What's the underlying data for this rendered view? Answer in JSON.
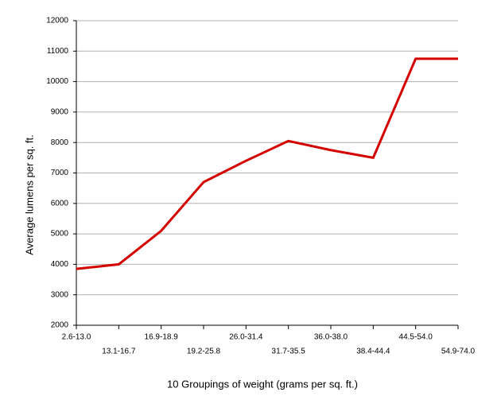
{
  "chart_data": {
    "type": "line",
    "xlabel": "10 Groupings of weight (grams per sq. ft.)",
    "ylabel": "Average lumens per sq. ft.",
    "categories": [
      "2.6-13.0",
      "13.1-16.7",
      "16.9-18.9",
      "19.2-25.8",
      "26.0-31.4",
      "31.7-35.5",
      "36.0-38.0",
      "38.4-44.4",
      "44.5-54.0",
      "54.9-74.0"
    ],
    "values": [
      3850,
      4000,
      5100,
      6700,
      7400,
      8050,
      7750,
      7500,
      10750,
      10750
    ],
    "color": "#d40000",
    "ylim": [
      2000,
      12000
    ],
    "yticks": [
      2000,
      3000,
      4000,
      5000,
      6000,
      7000,
      8000,
      9000,
      10000,
      11000,
      12000
    ],
    "grid": true
  }
}
